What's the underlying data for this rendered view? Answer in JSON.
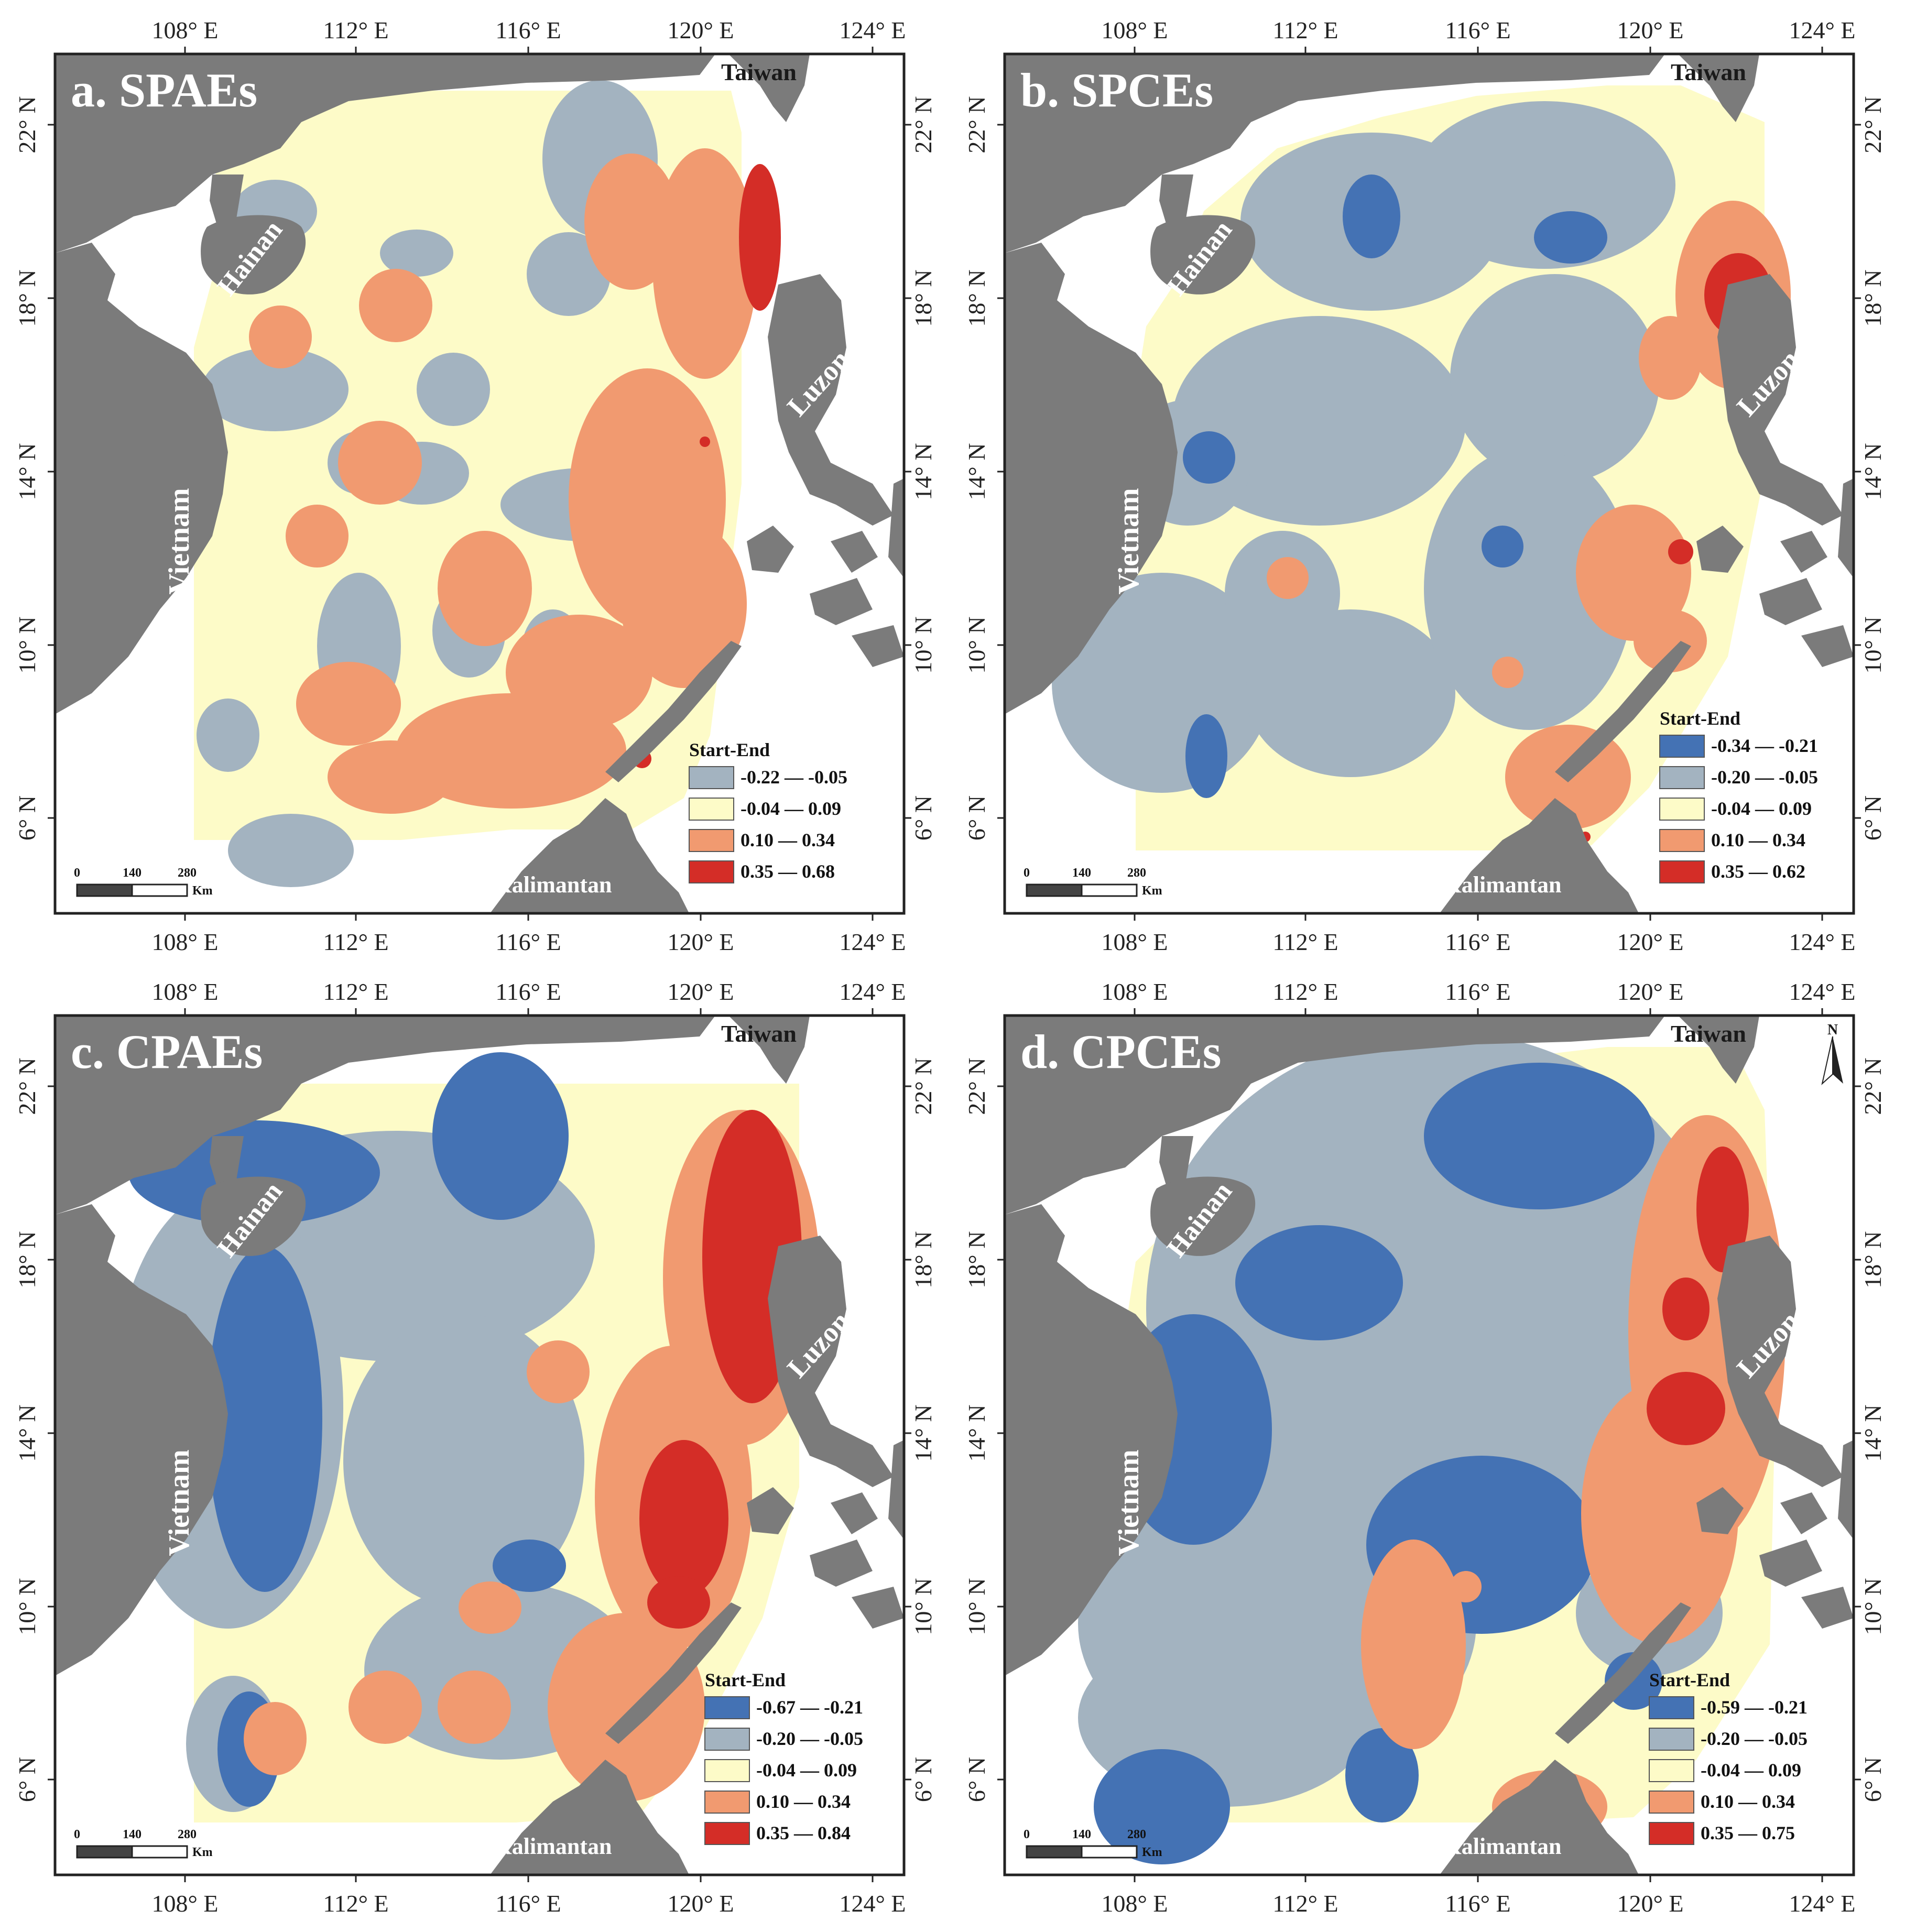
{
  "colors": {
    "land": "#7b7b7b",
    "sea": "#ffffff",
    "class_deep_negative": "#4472b4",
    "class_negative": "#a3b3c0",
    "class_neutral": "#fdfbc8",
    "class_positive": "#f19a70",
    "class_strong_positive": "#d42d27",
    "frame": "#222222"
  },
  "axes": {
    "lon_ticks": [
      "108° E",
      "112° E",
      "116° E",
      "120° E",
      "124° E"
    ],
    "lat_ticks": [
      "22° N",
      "18° N",
      "14° N",
      "10° N",
      "6° N"
    ]
  },
  "place_labels": {
    "taiwan": "Taiwan",
    "hainan": "Hainan",
    "luzon": "Luzon",
    "vietnam": "Vietnam",
    "kalimantan": "Kalimantan"
  },
  "scale_bar": {
    "ticks": [
      "0",
      "140",
      "280"
    ],
    "unit": "Km"
  },
  "north_arrow": "N",
  "legend_title": "Start-End",
  "panels": [
    {
      "id": "a",
      "title": "a. SPAEs",
      "legend": [
        {
          "range": "-0.22 — -0.05",
          "color": "#a3b3c0"
        },
        {
          "range": "-0.04 — 0.09",
          "color": "#fdfbc8"
        },
        {
          "range": "0.10 — 0.34",
          "color": "#f19a70"
        },
        {
          "range": "0.35 — 0.68",
          "color": "#d42d27"
        }
      ]
    },
    {
      "id": "b",
      "title": "b. SPCEs",
      "legend": [
        {
          "range": "-0.34 — -0.21",
          "color": "#4472b4"
        },
        {
          "range": "-0.20 — -0.05",
          "color": "#a3b3c0"
        },
        {
          "range": "-0.04 — 0.09",
          "color": "#fdfbc8"
        },
        {
          "range": "0.10 — 0.34",
          "color": "#f19a70"
        },
        {
          "range": "0.35 — 0.62",
          "color": "#d42d27"
        }
      ]
    },
    {
      "id": "c",
      "title": "c. CPAEs",
      "legend": [
        {
          "range": "-0.67 — -0.21",
          "color": "#4472b4"
        },
        {
          "range": "-0.20 — -0.05",
          "color": "#a3b3c0"
        },
        {
          "range": "-0.04 — 0.09",
          "color": "#fdfbc8"
        },
        {
          "range": "0.10 — 0.34",
          "color": "#f19a70"
        },
        {
          "range": "0.35 — 0.84",
          "color": "#d42d27"
        }
      ]
    },
    {
      "id": "d",
      "title": "d. CPCEs",
      "legend": [
        {
          "range": "-0.59 — -0.21",
          "color": "#4472b4"
        },
        {
          "range": "-0.20 — -0.05",
          "color": "#a3b3c0"
        },
        {
          "range": "-0.04 — 0.09",
          "color": "#fdfbc8"
        },
        {
          "range": "0.10 — 0.34",
          "color": "#f19a70"
        },
        {
          "range": "0.35 — 0.75",
          "color": "#d42d27"
        }
      ]
    }
  ]
}
